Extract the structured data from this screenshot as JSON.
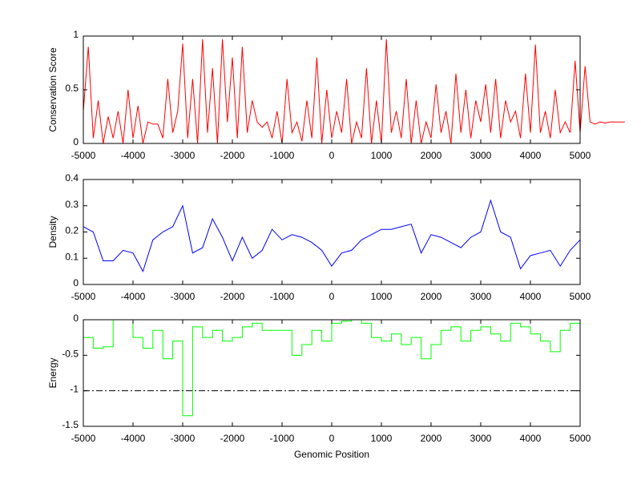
{
  "chart_data": [
    {
      "type": "line",
      "ylabel": "Conservation Score",
      "xlim": [
        -5000,
        5000
      ],
      "ylim": [
        0,
        1
      ],
      "xticks": [
        "-5000",
        "-4000",
        "-3000",
        "-2000",
        "-1000",
        "0",
        "1000",
        "2000",
        "3000",
        "4000",
        "5000"
      ],
      "yticks": [
        "0",
        "0.5",
        "1"
      ],
      "color": "#ff0000",
      "x_start": -5000,
      "x_step": 100,
      "values": [
        0.3,
        0.9,
        0.05,
        0.4,
        0.0,
        0.25,
        0.05,
        0.3,
        0.0,
        0.5,
        0.05,
        0.35,
        0.0,
        0.2,
        0.18,
        0.18,
        0.05,
        0.6,
        0.1,
        0.3,
        0.93,
        0.05,
        0.6,
        0.0,
        0.97,
        0.1,
        0.7,
        0.0,
        0.97,
        0.2,
        0.8,
        0.05,
        0.9,
        0.1,
        0.4,
        0.2,
        0.15,
        0.2,
        0.05,
        0.3,
        0.0,
        0.6,
        0.1,
        0.2,
        0.02,
        0.4,
        0.05,
        0.8,
        0.0,
        0.5,
        0.05,
        0.3,
        0.1,
        0.6,
        0.0,
        0.2,
        0.05,
        0.7,
        0.0,
        0.4,
        0.0,
        0.97,
        0.1,
        0.3,
        0.05,
        0.6,
        0.0,
        0.4,
        0.0,
        0.2,
        0.05,
        0.55,
        0.1,
        0.3,
        0.0,
        0.65,
        0.1,
        0.5,
        0.05,
        0.4,
        0.2,
        0.55,
        0.1,
        0.6,
        0.05,
        0.4,
        0.2,
        0.3,
        0.05,
        0.65,
        0.1,
        0.92,
        0.1,
        0.3,
        0.05,
        0.5,
        0.1,
        0.2,
        0.1,
        0.77,
        0.1,
        0.72,
        0.2,
        0.18,
        0.2,
        0.19,
        0.2,
        0.2,
        0.2,
        0.2
      ]
    },
    {
      "type": "line",
      "ylabel": "Density",
      "xlim": [
        -5000,
        5000
      ],
      "ylim": [
        0,
        0.4
      ],
      "xticks": [
        "-5000",
        "-4000",
        "-3000",
        "-2000",
        "-1000",
        "0",
        "1000",
        "2000",
        "3000",
        "4000",
        "5000"
      ],
      "yticks": [
        "0",
        "0.1",
        "0.2",
        "0.3",
        "0.4"
      ],
      "color": "#0000ff",
      "x_start": -5000,
      "x_step": 200,
      "values": [
        0.22,
        0.2,
        0.09,
        0.09,
        0.13,
        0.12,
        0.05,
        0.17,
        0.2,
        0.22,
        0.3,
        0.12,
        0.14,
        0.25,
        0.18,
        0.09,
        0.18,
        0.1,
        0.13,
        0.21,
        0.17,
        0.19,
        0.18,
        0.16,
        0.13,
        0.07,
        0.12,
        0.13,
        0.17,
        0.19,
        0.21,
        0.21,
        0.22,
        0.23,
        0.12,
        0.19,
        0.18,
        0.16,
        0.14,
        0.18,
        0.2,
        0.32,
        0.2,
        0.18,
        0.06,
        0.11,
        0.12,
        0.13,
        0.07,
        0.13,
        0.17
      ]
    },
    {
      "type": "line",
      "ylabel": "Energy",
      "xlabel": "Genomic Position",
      "xlim": [
        -5000,
        5000
      ],
      "ylim": [
        -1.5,
        0
      ],
      "xticks": [
        "-5000",
        "-4000",
        "-3000",
        "-2000",
        "-1000",
        "0",
        "1000",
        "2000",
        "3000",
        "4000",
        "5000"
      ],
      "yticks": [
        "-1.5",
        "-1",
        "-0.5",
        "0"
      ],
      "color": "#00ff00",
      "threshold": -1,
      "x_start": -5000,
      "x_step": 200,
      "values": [
        -0.25,
        -0.4,
        -0.38,
        0,
        0,
        -0.25,
        -0.4,
        -0.15,
        -0.55,
        -0.3,
        -1.35,
        -0.1,
        -0.25,
        -0.15,
        -0.3,
        -0.25,
        -0.1,
        -0.05,
        -0.15,
        -0.15,
        -0.15,
        -0.5,
        -0.35,
        -0.15,
        -0.3,
        -0.05,
        -0.02,
        0,
        -0.05,
        -0.25,
        -0.3,
        -0.2,
        -0.35,
        -0.25,
        -0.55,
        -0.35,
        -0.15,
        -0.1,
        -0.3,
        -0.15,
        -0.1,
        -0.2,
        -0.3,
        -0.05,
        -0.1,
        -0.2,
        -0.3,
        -0.45,
        -0.15,
        -0.05,
        -0.2
      ]
    }
  ]
}
